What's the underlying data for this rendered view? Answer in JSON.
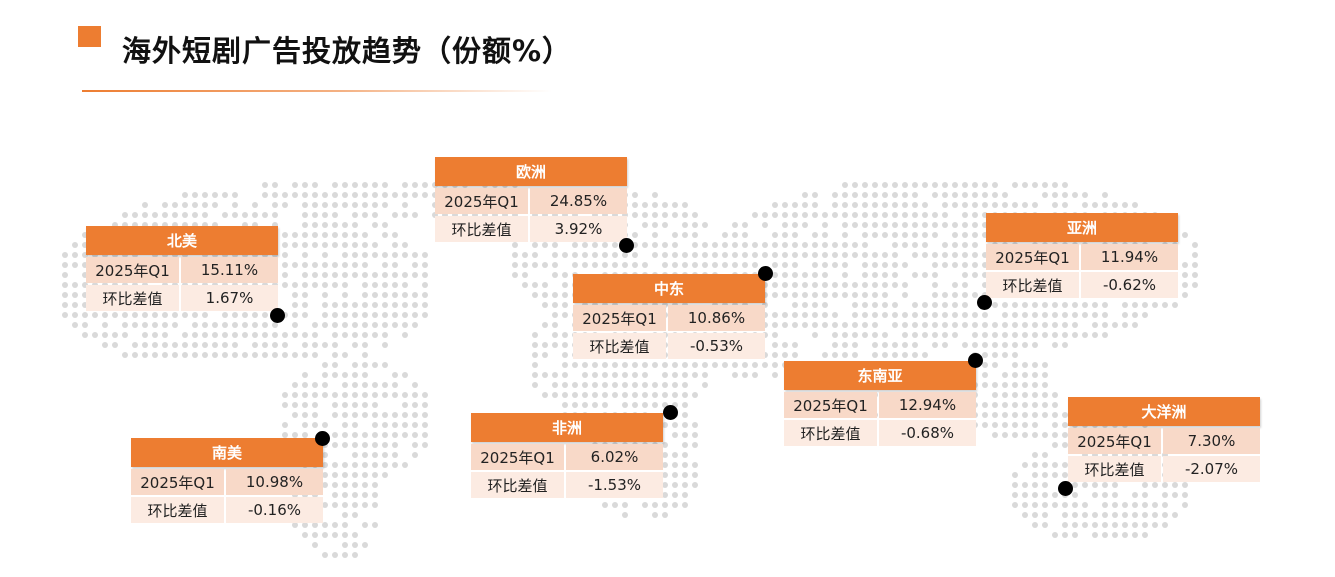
{
  "title": "海外短剧广告投放趋势（份额%）",
  "colors": {
    "accent": "#ed7d31",
    "row1": "#f8d9c8",
    "row2": "#fcebe2",
    "marker": "#000000"
  },
  "row_labels": {
    "q1": "2025年Q1",
    "diff": "环比差值"
  },
  "regions": [
    {
      "name": "欧洲",
      "q1": "24.85%",
      "diff": "3.92%"
    },
    {
      "name": "北美",
      "q1": "15.11%",
      "diff": "1.67%"
    },
    {
      "name": "亚洲",
      "q1": "11.94%",
      "diff": "-0.62%"
    },
    {
      "name": "中东",
      "q1": "10.86%",
      "diff": "-0.53%"
    },
    {
      "name": "东南亚",
      "q1": "12.94%",
      "diff": "-0.68%"
    },
    {
      "name": "大洋洲",
      "q1": "7.30%",
      "diff": "-2.07%"
    },
    {
      "name": "非洲",
      "q1": "6.02%",
      "diff": "-1.53%"
    },
    {
      "name": "南美",
      "q1": "10.98%",
      "diff": "-0.16%"
    }
  ],
  "chart_data": {
    "type": "table",
    "title": "海外短剧广告投放趋势（份额%）",
    "columns": [
      "2025年Q1",
      "环比差值"
    ],
    "categories": [
      "欧洲",
      "北美",
      "亚洲",
      "中东",
      "东南亚",
      "大洋洲",
      "非洲",
      "南美"
    ],
    "series": [
      {
        "name": "2025年Q1",
        "values": [
          24.85,
          15.11,
          11.94,
          10.86,
          12.94,
          7.3,
          6.02,
          10.98
        ]
      },
      {
        "name": "环比差值",
        "values": [
          3.92,
          1.67,
          -0.62,
          -0.53,
          -0.68,
          -2.07,
          -1.53,
          -0.16
        ]
      }
    ]
  }
}
